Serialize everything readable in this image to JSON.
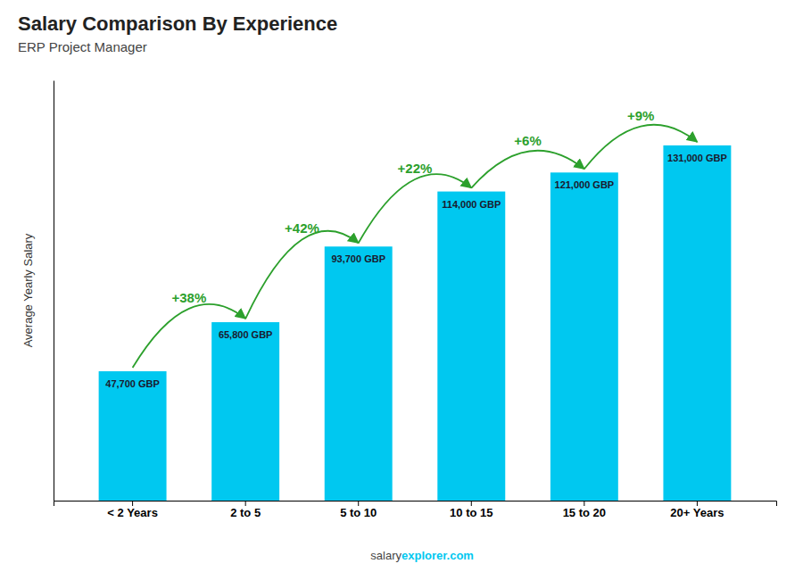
{
  "chart_data": {
    "type": "bar",
    "title": "Salary Comparison By Experience",
    "subtitle": "ERP Project Manager",
    "categories": [
      "< 2 Years",
      "2 to 5",
      "5 to 10",
      "10 to 15",
      "15 to 20",
      "20+ Years"
    ],
    "values": [
      47700,
      65800,
      93700,
      114000,
      121000,
      131000
    ],
    "value_labels": [
      "47,700 GBP",
      "65,800 GBP",
      "93,700 GBP",
      "114,000 GBP",
      "121,000 GBP",
      "131,000 GBP"
    ],
    "data_labels": true,
    "color": "#00C8F0",
    "ylim": [
      0,
      155000
    ],
    "tick_labels": "x",
    "ylabel": "Average Yearly Salary",
    "annotations": [
      "+38%",
      "+42%",
      "+22%",
      "+6%",
      "+9%"
    ],
    "footer": [
      "salary",
      "explorer.com"
    ]
  }
}
